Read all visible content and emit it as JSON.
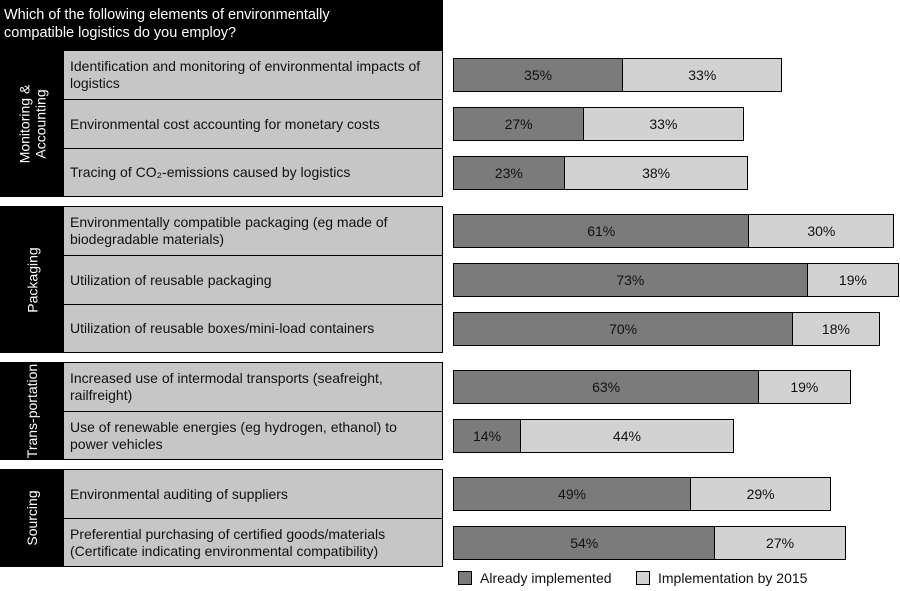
{
  "chart_data": {
    "type": "bar",
    "orientation": "horizontal",
    "stacked": true,
    "title": "Which of the following elements of environmentally compatible logistics do you employ?",
    "groups": [
      {
        "name": "Monitoring & Accounting",
        "categories": [
          "Identification and monitoring of environmental impacts of logistics",
          "Environmental cost accounting for monetary costs",
          "Tracing of CO₂-emissions caused by logistics"
        ]
      },
      {
        "name": "Packaging",
        "categories": [
          "Environmentally compatible packaging (eg made of biodegradable materials)",
          "Utilization of reusable packaging",
          "Utilization of reusable boxes/mini-load containers"
        ]
      },
      {
        "name": "Trans-portation",
        "categories": [
          "Increased use of intermodal transports (seafreight, railfreight)",
          "Use of renewable energies (eg hydrogen, ethanol) to power vehicles"
        ]
      },
      {
        "name": "Sourcing",
        "categories": [
          "Environmental auditing of suppliers",
          "Preferential purchasing of certified goods/materials (Certificate indicating environmental compatibility)"
        ]
      }
    ],
    "series": [
      {
        "name": "Already implemented",
        "color": "#7b7b7b",
        "values": [
          35,
          27,
          23,
          61,
          73,
          70,
          63,
          14,
          49,
          54
        ],
        "value_labels": [
          "35%",
          "27%",
          "23%",
          "61%",
          "73%",
          "70%",
          "63%",
          "14%",
          "49%",
          "54%"
        ]
      },
      {
        "name": "Implementation by 2015",
        "color": "#d2d2d2",
        "values": [
          33,
          33,
          38,
          30,
          19,
          18,
          19,
          44,
          29,
          27
        ],
        "value_labels": [
          "33%",
          "33%",
          "38%",
          "30%",
          "19%",
          "18%",
          "19%",
          "44%",
          "29%",
          "27%"
        ]
      }
    ]
  }
}
